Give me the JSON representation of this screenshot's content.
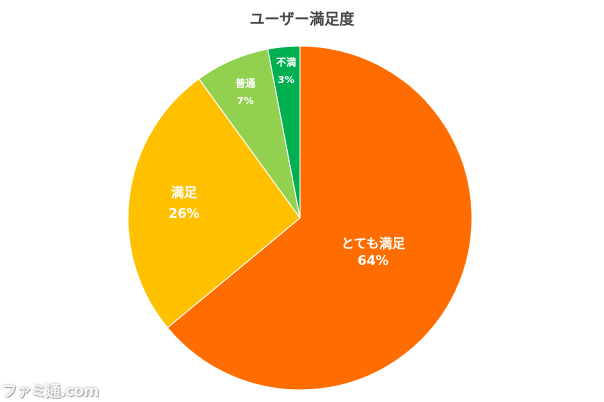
{
  "chart_data": {
    "type": "pie",
    "title": "ユーザー満足度",
    "start_angle": "top",
    "direction": "clockwise",
    "categories": [
      "とても満足",
      "満足",
      "普通",
      "不満"
    ],
    "values": [
      64,
      26,
      7,
      3
    ],
    "value_labels": [
      "64%",
      "26%",
      "7%",
      "3%"
    ],
    "colors": [
      "#ff6d01",
      "#ffc000",
      "#92d050",
      "#00b050"
    ],
    "legend": "none"
  },
  "watermark": "ファミ通.com"
}
